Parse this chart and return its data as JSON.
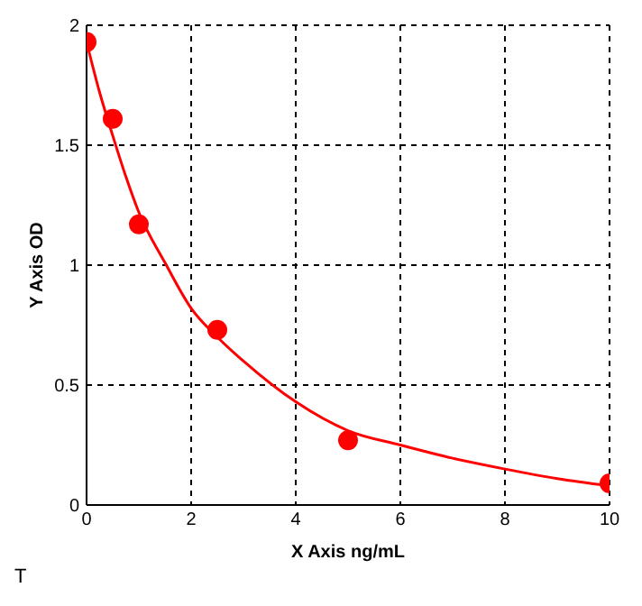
{
  "chart_data": {
    "type": "scatter",
    "xlabel": "X Axis ng/mL",
    "ylabel": "Y Axis OD",
    "annotations": [
      "T"
    ],
    "series": [
      {
        "color": "#ff0000",
        "x": [
          0,
          0.5,
          1,
          2.5,
          5,
          10
        ],
        "values": [
          1.93,
          1.61,
          1.17,
          0.73,
          0.27,
          0.09
        ],
        "marker": "circle"
      },
      {
        "type": "line",
        "color": "#ff0000",
        "x": [
          0,
          0.25,
          0.5,
          0.75,
          1,
          1.5,
          2,
          2.5,
          3,
          4,
          5,
          6,
          7,
          8,
          9,
          10
        ],
        "values": [
          1.93,
          1.72,
          1.54,
          1.37,
          1.22,
          1.01,
          0.82,
          0.7,
          0.6,
          0.43,
          0.31,
          0.25,
          0.195,
          0.15,
          0.11,
          0.08
        ],
        "marker": "none"
      }
    ],
    "xlim": [
      0,
      10
    ],
    "xticks": [
      0,
      2,
      4,
      6,
      8,
      10
    ],
    "ylim": [
      0,
      2
    ],
    "yticks": [
      0,
      0.5,
      1,
      1.5,
      2
    ],
    "grid": true,
    "line_style": "solid",
    "legend": false
  }
}
